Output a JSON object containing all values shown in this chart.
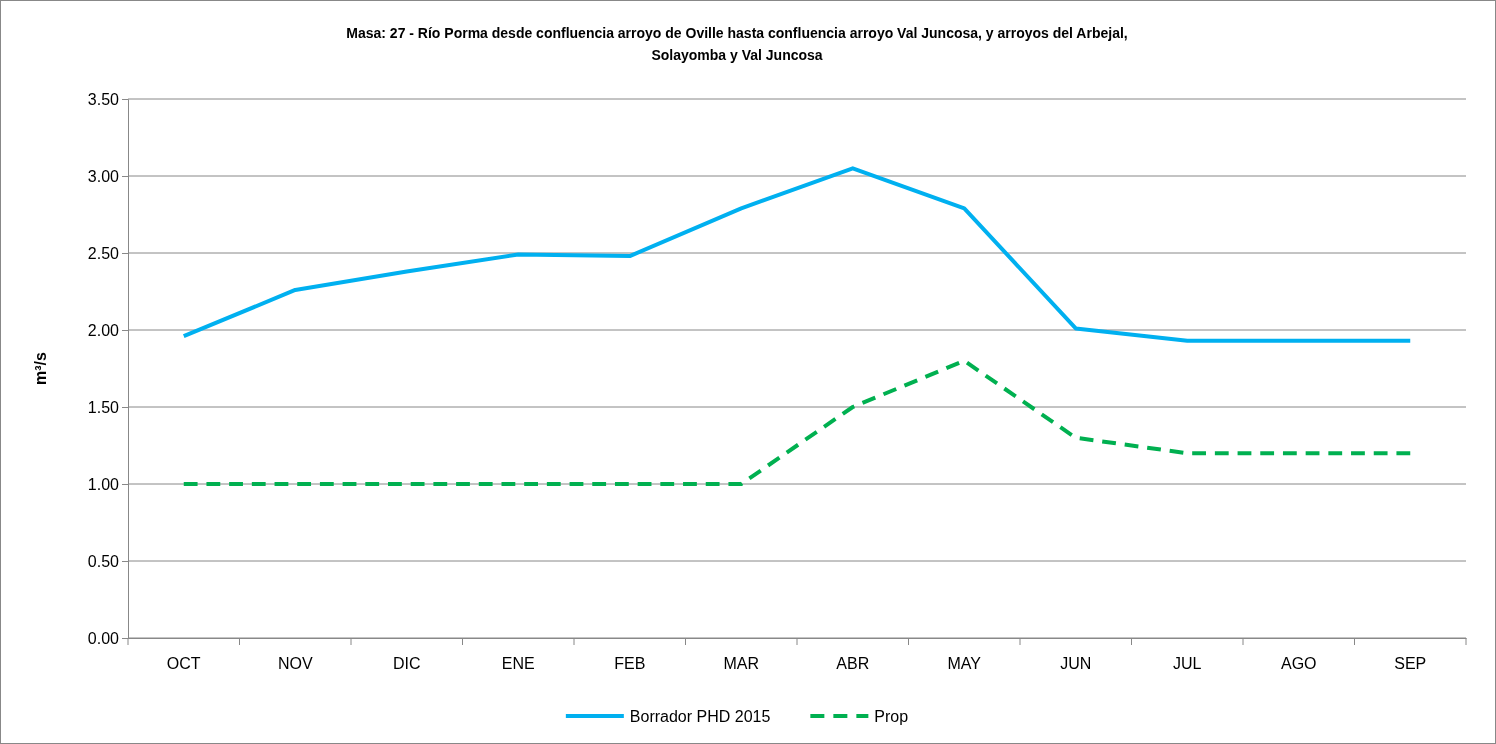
{
  "chart_data": {
    "type": "line",
    "title": "Masa: 27 - Río Porma desde confluencia arroyo de Oville hasta confluencia arroyo Val Juncosa, y arroyos del Arbejal, Solayomba y Val Juncosa",
    "ylabel": "m³/s",
    "categories": [
      "OCT",
      "NOV",
      "DIC",
      "ENE",
      "FEB",
      "MAR",
      "ABR",
      "MAY",
      "JUN",
      "JUL",
      "AGO",
      "SEP"
    ],
    "series": [
      {
        "name": "Borrador PHD 2015",
        "color": "#00b0f0",
        "line_style": "solid",
        "values": [
          1.96,
          2.26,
          2.38,
          2.49,
          2.48,
          2.79,
          3.05,
          2.79,
          2.01,
          1.93,
          1.93,
          1.93
        ]
      },
      {
        "name": "Prop",
        "color": "#00b050",
        "line_style": "dashed",
        "values": [
          1.0,
          1.0,
          1.0,
          1.0,
          1.0,
          1.0,
          1.5,
          1.8,
          1.3,
          1.2,
          1.2,
          1.2
        ]
      }
    ],
    "ylim": [
      0,
      3.5
    ],
    "yticks": [
      {
        "value": 0,
        "label": "0.00"
      },
      {
        "value": 0.5,
        "label": "0.50"
      },
      {
        "value": 1,
        "label": "1.00"
      },
      {
        "value": 1.5,
        "label": "1.50"
      },
      {
        "value": 2,
        "label": "2.00"
      },
      {
        "value": 2.5,
        "label": "2.50"
      },
      {
        "value": 3,
        "label": "3.00"
      },
      {
        "value": 3.5,
        "label": "3.50"
      }
    ],
    "grid": "y",
    "legend": "bottom",
    "marker": "none"
  }
}
